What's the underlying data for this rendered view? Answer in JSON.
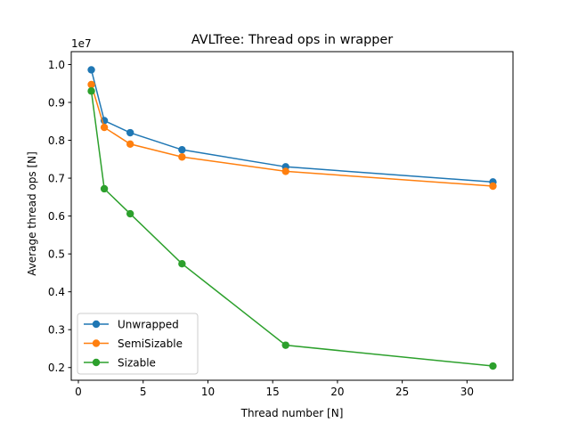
{
  "chart_data": {
    "type": "line",
    "title": "AVLTree: Thread ops in wrapper",
    "xlabel": "Thread number [N]",
    "ylabel": "Average thread ops [N]",
    "y_offset_text": "1e7",
    "xlim": [
      -0.55,
      33.55
    ],
    "ylim": [
      0.1665,
      1.034
    ],
    "xticks": [
      0,
      5,
      10,
      15,
      20,
      25,
      30
    ],
    "xtick_labels": [
      "0",
      "5",
      "10",
      "15",
      "20",
      "25",
      "30"
    ],
    "yticks": [
      0.2,
      0.3,
      0.4,
      0.5,
      0.6,
      0.7,
      0.8,
      0.9,
      1.0
    ],
    "ytick_labels": [
      "0.2",
      "0.3",
      "0.4",
      "0.5",
      "0.6",
      "0.7",
      "0.8",
      "0.9",
      "1.0"
    ],
    "grid": false,
    "legend_position": "lower-left",
    "x": [
      1,
      2,
      4,
      8,
      16,
      32
    ],
    "series": [
      {
        "name": "Unwrapped",
        "color": "#1f77b4",
        "values": [
          0.986,
          0.852,
          0.82,
          0.775,
          0.73,
          0.69
        ]
      },
      {
        "name": "SemiSizable",
        "color": "#ff7f0e",
        "values": [
          0.947,
          0.834,
          0.79,
          0.756,
          0.718,
          0.679
        ]
      },
      {
        "name": "Sizable",
        "color": "#2ca02c",
        "values": [
          0.93,
          0.672,
          0.606,
          0.474,
          0.259,
          0.204
        ]
      }
    ]
  }
}
